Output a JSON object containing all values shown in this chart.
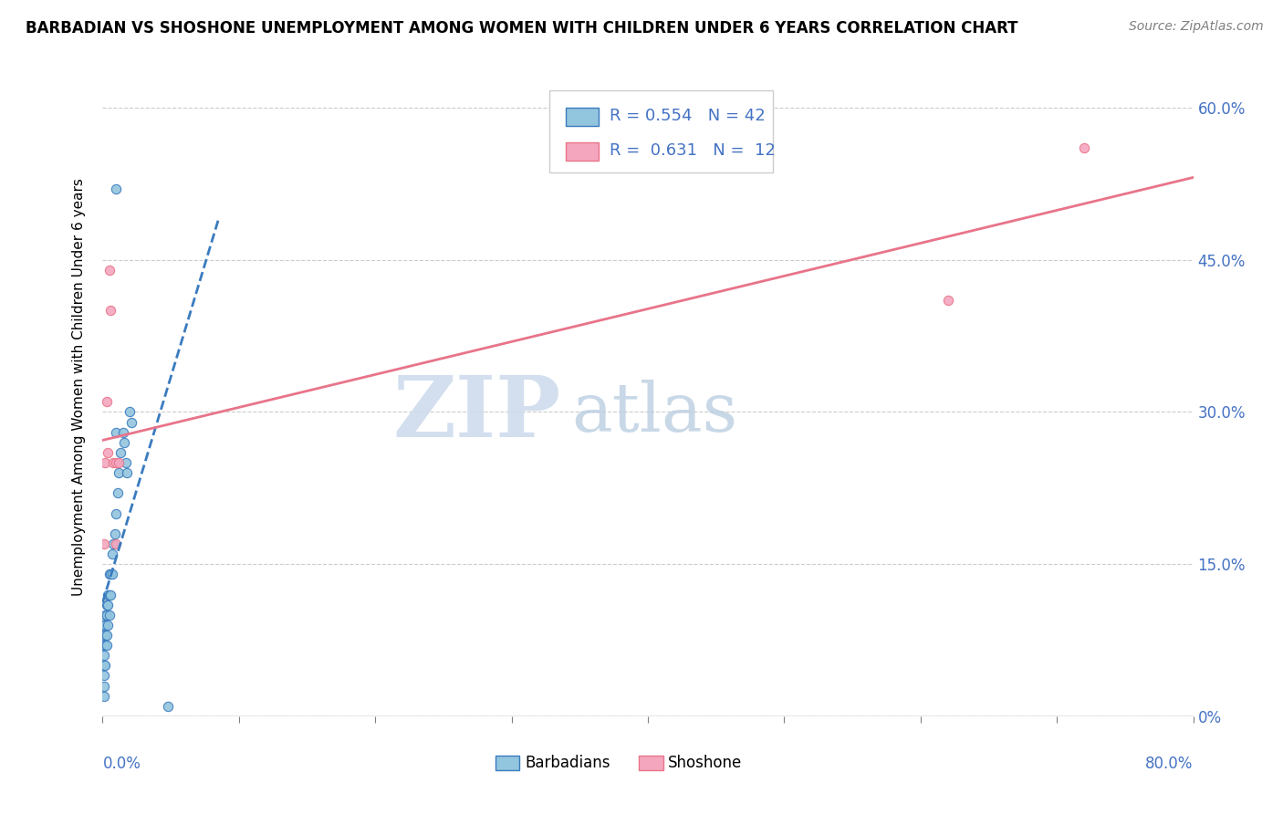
{
  "title": "BARBADIAN VS SHOSHONE UNEMPLOYMENT AMONG WOMEN WITH CHILDREN UNDER 6 YEARS CORRELATION CHART",
  "source": "Source: ZipAtlas.com",
  "ylabel": "Unemployment Among Women with Children Under 6 years",
  "xlim": [
    0.0,
    0.8
  ],
  "ylim": [
    0.0,
    0.65
  ],
  "yticks_right": [
    0.0,
    0.15,
    0.3,
    0.45,
    0.6
  ],
  "ytick_right_labels": [
    "0%",
    "15.0%",
    "30.0%",
    "45.0%",
    "60.0%"
  ],
  "barbadian_color": "#92c5de",
  "shoshone_color": "#f4a6be",
  "trend_barbadian_color": "#3a7bbf",
  "trend_shoshone_color": "#e8748a",
  "legend_R_barbadian": "0.554",
  "legend_N_barbadian": "42",
  "legend_R_shoshone": "0.631",
  "legend_N_shoshone": "12",
  "watermark_zip": "ZIP",
  "watermark_atlas": "atlas",
  "watermark_color_zip": "#d0dff0",
  "watermark_color_atlas": "#b8cce4",
  "background_color": "#ffffff",
  "grid_color": "#cccccc",
  "barbadian_x": [
    0.001,
    0.001,
    0.001,
    0.001,
    0.001,
    0.001,
    0.001,
    0.001,
    0.002,
    0.002,
    0.002,
    0.002,
    0.002,
    0.003,
    0.003,
    0.003,
    0.003,
    0.004,
    0.004,
    0.004,
    0.005,
    0.005,
    0.005,
    0.006,
    0.006,
    0.007,
    0.007,
    0.008,
    0.009,
    0.01,
    0.01,
    0.011,
    0.012,
    0.013,
    0.015,
    0.016,
    0.017,
    0.018,
    0.02,
    0.021,
    0.01,
    0.048
  ],
  "barbadian_y": [
    0.02,
    0.03,
    0.04,
    0.05,
    0.06,
    0.07,
    0.08,
    0.09,
    0.05,
    0.07,
    0.08,
    0.09,
    0.1,
    0.07,
    0.08,
    0.1,
    0.11,
    0.09,
    0.11,
    0.12,
    0.1,
    0.12,
    0.14,
    0.12,
    0.14,
    0.14,
    0.16,
    0.17,
    0.18,
    0.2,
    0.28,
    0.22,
    0.24,
    0.26,
    0.28,
    0.27,
    0.25,
    0.24,
    0.3,
    0.29,
    0.52,
    0.01
  ],
  "shoshone_x": [
    0.001,
    0.002,
    0.003,
    0.004,
    0.005,
    0.006,
    0.008,
    0.01,
    0.01,
    0.012,
    0.62,
    0.72
  ],
  "shoshone_y": [
    0.17,
    0.25,
    0.31,
    0.26,
    0.44,
    0.4,
    0.25,
    0.25,
    0.17,
    0.25,
    0.41,
    0.56
  ],
  "trend_b_x0": 0.0,
  "trend_b_x1": 0.085,
  "trend_s_x0": 0.0,
  "trend_s_x1": 0.8
}
